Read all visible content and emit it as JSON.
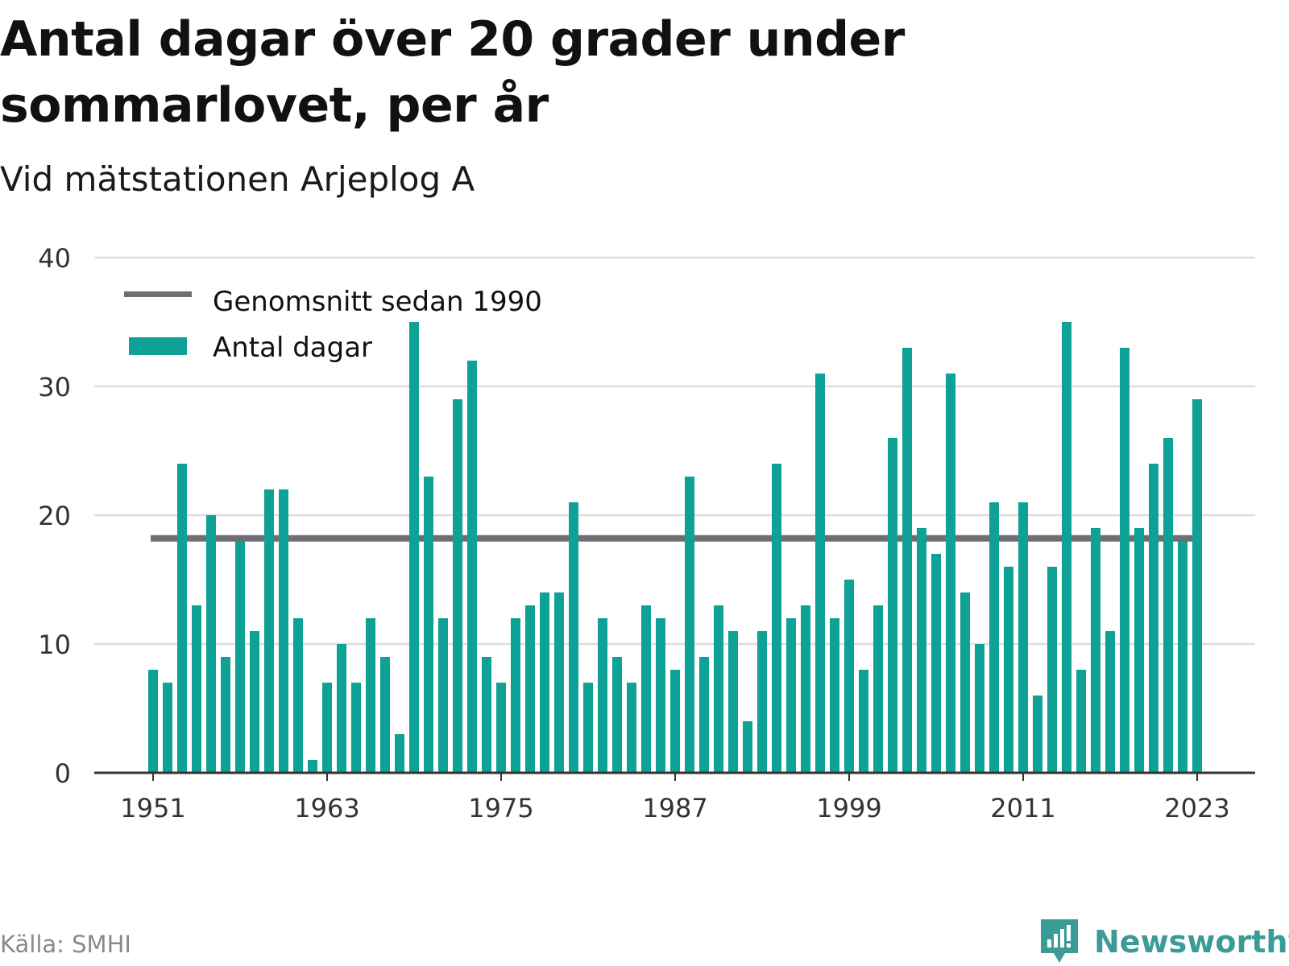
{
  "title": "Antal dagar över 20 grader under sommarlovet, per år",
  "subtitle": "Vid mätstationen Arjeplog A",
  "source": "Källa: SMHI",
  "brand": {
    "name": "Newsworthy",
    "icon": "bar-chart-logo-icon",
    "color": "#3b9b96"
  },
  "colors": {
    "bar": "#0ea195",
    "average_line": "#6f6f73",
    "grid": "#dddddd",
    "axis": "#333333"
  },
  "chart_data": {
    "type": "bar",
    "title": "Antal dagar över 20 grader under sommarlovet, per år",
    "subtitle": "Vid mätstationen Arjeplog A",
    "xlabel": "",
    "ylabel": "",
    "ylim": [
      0,
      40
    ],
    "yticks": [
      0,
      10,
      20,
      30,
      40
    ],
    "xticks": [
      1951,
      1963,
      1975,
      1987,
      1999,
      2011,
      2023
    ],
    "grid": true,
    "legend_position": "top-left",
    "categories": [
      1951,
      1952,
      1953,
      1954,
      1955,
      1956,
      1957,
      1958,
      1959,
      1960,
      1961,
      1962,
      1963,
      1964,
      1965,
      1966,
      1967,
      1968,
      1969,
      1970,
      1971,
      1972,
      1973,
      1974,
      1975,
      1976,
      1977,
      1978,
      1979,
      1980,
      1981,
      1982,
      1983,
      1984,
      1985,
      1986,
      1987,
      1988,
      1989,
      1990,
      1991,
      1992,
      1993,
      1994,
      1995,
      1996,
      1997,
      1998,
      1999,
      2000,
      2001,
      2002,
      2003,
      2004,
      2005,
      2006,
      2007,
      2008,
      2009,
      2010,
      2011,
      2012,
      2013,
      2014,
      2015,
      2016,
      2017,
      2018,
      2019,
      2020,
      2021,
      2022,
      2023
    ],
    "series": [
      {
        "name": "Antal dagar",
        "type": "bar",
        "values": [
          8,
          7,
          24,
          13,
          20,
          9,
          18,
          11,
          22,
          22,
          12,
          1,
          7,
          10,
          7,
          12,
          9,
          3,
          35,
          23,
          12,
          29,
          32,
          9,
          7,
          12,
          13,
          14,
          14,
          21,
          7,
          12,
          9,
          7,
          13,
          12,
          8,
          23,
          9,
          13,
          11,
          4,
          11,
          24,
          12,
          13,
          31,
          12,
          15,
          8,
          13,
          26,
          33,
          19,
          17,
          31,
          14,
          10,
          21,
          16,
          21,
          6,
          16,
          35,
          8,
          19,
          11,
          33,
          19,
          24,
          26,
          18,
          29
        ]
      },
      {
        "name": "Genomsnitt sedan 1990",
        "type": "hline",
        "value": 18.2
      }
    ]
  }
}
